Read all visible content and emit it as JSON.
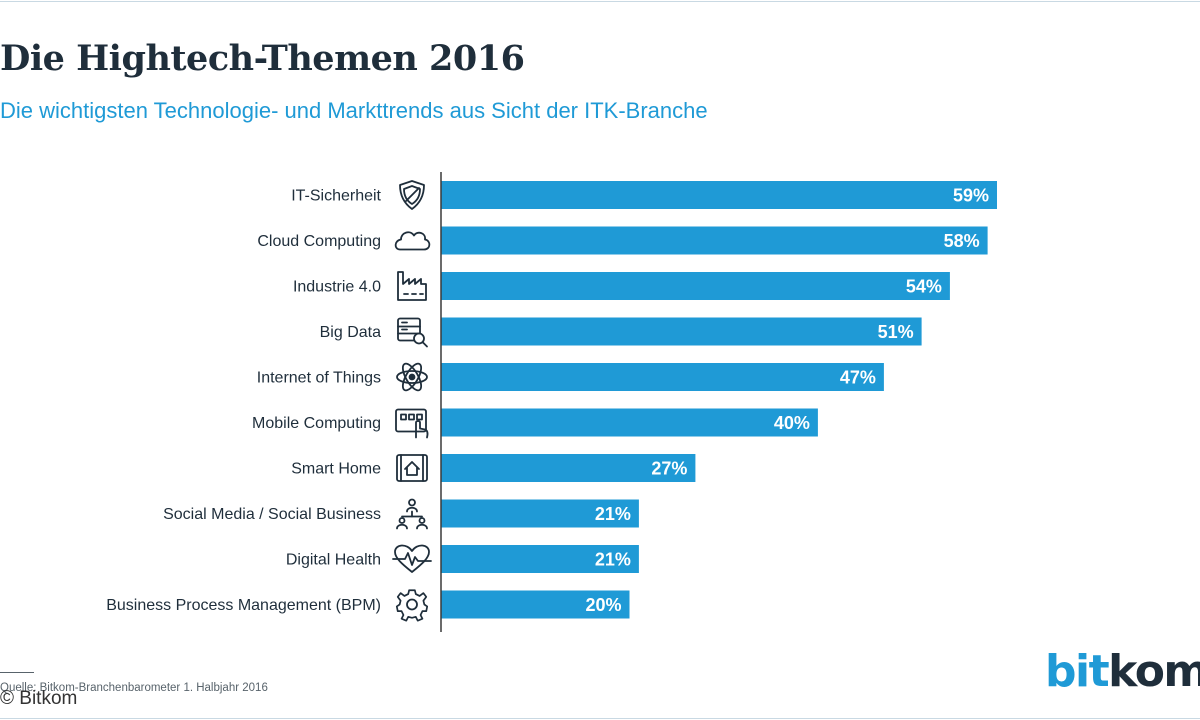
{
  "header": {
    "title": "Die Hightech-Themen 2016",
    "subtitle": "Die wichtigsten Technologie- und Markttrends aus Sicht der ITK-Branche"
  },
  "footer": {
    "source": "Quelle: Bitkom-Branchenbarometer 1. Halbjahr 2016",
    "copyright": "© Bitkom",
    "logo_part1": "bit",
    "logo_part2": "kom"
  },
  "colors": {
    "bar": "#1f9ad6",
    "text": "#1f2e3b",
    "axis": "#3a3a3a"
  },
  "chart_data": {
    "type": "bar",
    "orientation": "horizontal",
    "categories": [
      "IT-Sicherheit",
      "Cloud Computing",
      "Industrie 4.0",
      "Big Data",
      "Internet of Things",
      "Mobile Computing",
      "Smart Home",
      "Social Media / Social Business",
      "Digital Health",
      "Business Process Management (BPM)"
    ],
    "icons": [
      "shield-icon",
      "cloud-icon",
      "factory-icon",
      "server-search-icon",
      "atom-icon",
      "tablet-touch-icon",
      "smart-home-icon",
      "people-network-icon",
      "heart-pulse-icon",
      "gear-icon"
    ],
    "values": [
      59,
      58,
      54,
      51,
      47,
      40,
      27,
      21,
      21,
      20
    ],
    "value_labels": [
      "59%",
      "58%",
      "54%",
      "51%",
      "47%",
      "40%",
      "27%",
      "21%",
      "21%",
      "20%"
    ],
    "xlim": [
      0,
      100
    ],
    "grid": false
  }
}
